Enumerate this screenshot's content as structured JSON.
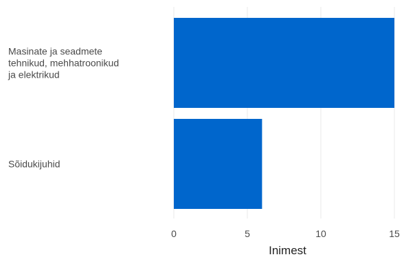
{
  "chart_data": {
    "type": "bar",
    "orientation": "horizontal",
    "categories": [
      [
        "Masinate ja seadmete",
        "tehnikud, mehhatroonikud",
        "ja elektrikud"
      ],
      [
        "Sõidukijuhid"
      ]
    ],
    "values": [
      15,
      6
    ],
    "xlabel": "Inimest",
    "ylabel": "",
    "xlim": [
      0,
      15
    ],
    "xticks": [
      0,
      5,
      10,
      15
    ],
    "grid": true,
    "colors": {
      "bar": "#0066cc",
      "grid": "#e8e8e8"
    }
  }
}
